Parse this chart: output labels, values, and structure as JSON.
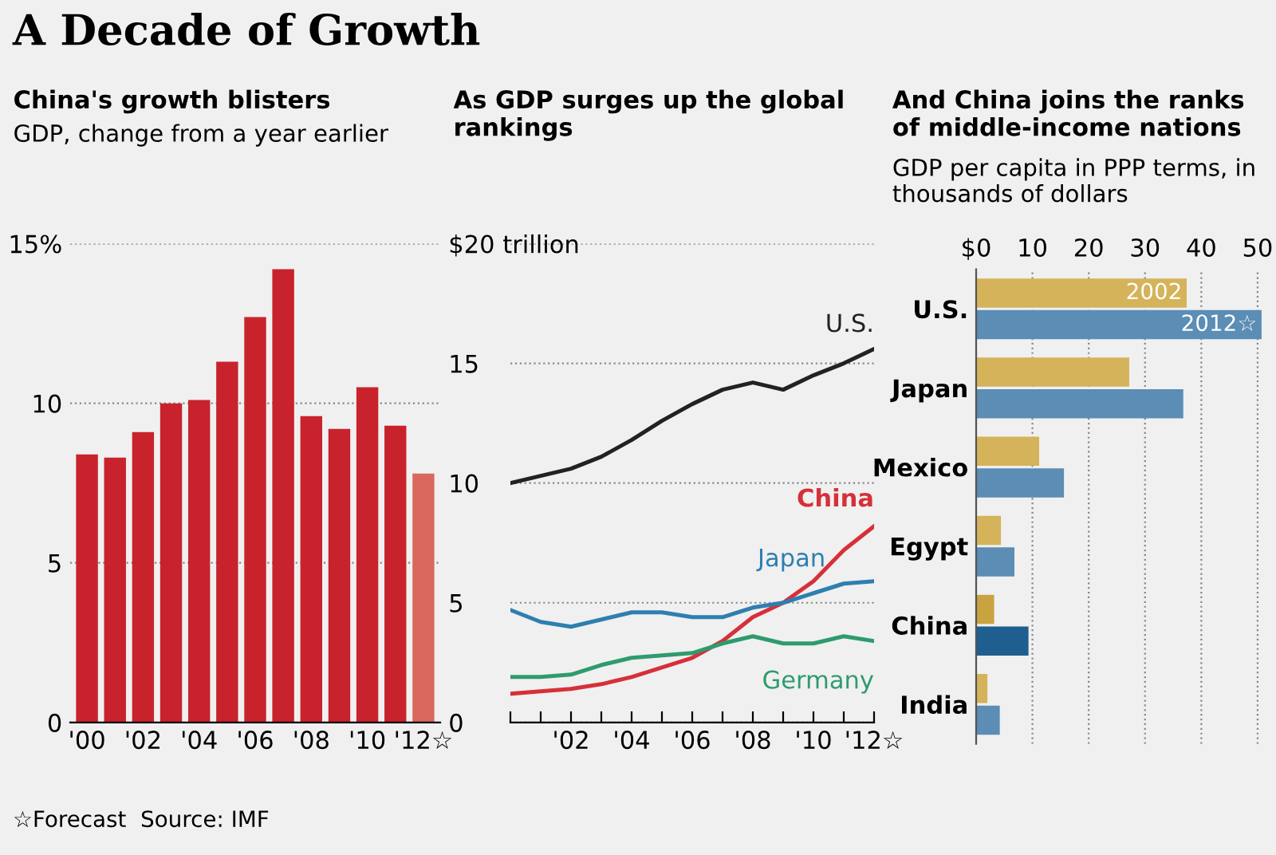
{
  "chart_data": [
    {
      "type": "bar",
      "title": "China's growth blisters",
      "subtitle": "GDP, change from a year earlier",
      "annotations": [
        "A Decade of Growth",
        "☆Forecast  Source: IMF"
      ],
      "categories": [
        "'00",
        null,
        "'02",
        null,
        "'04",
        null,
        "'06",
        null,
        "'08",
        null,
        "'10",
        null,
        "'12☆"
      ],
      "values": [
        8.4,
        8.3,
        9.1,
        10.0,
        10.1,
        11.3,
        12.7,
        14.2,
        9.6,
        9.2,
        10.5,
        9.3,
        7.8
      ],
      "colors": [
        "#c8232c",
        "#c8232c",
        "#c8232c",
        "#c8232c",
        "#c8232c",
        "#c8232c",
        "#c8232c",
        "#c8232c",
        "#c8232c",
        "#c8232c",
        "#c8232c",
        "#c8232c",
        "#d9685f"
      ],
      "ylim": [
        0,
        15
      ],
      "yticks": [
        0,
        5,
        10,
        {
          "value": 15,
          "label": "15%"
        }
      ],
      "grid": "y"
    },
    {
      "type": "line",
      "title": "As GDP surges up the global rankings",
      "categories": [
        null,
        null,
        "'02",
        null,
        "'04",
        null,
        "'06",
        null,
        "'08",
        null,
        "'10",
        null,
        "'12☆"
      ],
      "series": [
        {
          "name": "U.S.",
          "color": "#222222",
          "values": [
            10.0,
            10.3,
            10.6,
            11.1,
            11.8,
            12.6,
            13.3,
            13.9,
            14.2,
            13.9,
            14.5,
            15.0,
            15.6
          ]
        },
        {
          "name": "China",
          "color": "#d6303a",
          "values": [
            1.2,
            1.3,
            1.4,
            1.6,
            1.9,
            2.3,
            2.7,
            3.4,
            4.4,
            5.0,
            5.9,
            7.2,
            8.2
          ]
        },
        {
          "name": "Japan",
          "color": "#2d7fb0",
          "values": [
            4.7,
            4.2,
            4.0,
            4.3,
            4.6,
            4.6,
            4.4,
            4.4,
            4.8,
            5.0,
            5.4,
            5.8,
            5.9
          ]
        },
        {
          "name": "Germany",
          "color": "#2e9b6e",
          "values": [
            1.9,
            1.9,
            2.0,
            2.4,
            2.7,
            2.8,
            2.9,
            3.3,
            3.6,
            3.3,
            3.3,
            3.6,
            3.4
          ]
        }
      ],
      "ylim": [
        0,
        20
      ],
      "yticks": [
        0,
        5,
        10,
        15,
        {
          "value": 20,
          "label": "$20 trillion"
        }
      ],
      "grid": "y"
    },
    {
      "type": "bar",
      "orientation": "horizontal",
      "title": "And China joins the ranks of middle-income nations",
      "subtitle": "GDP per capita in PPP terms, in thousands of dollars",
      "categories": [
        "U.S.",
        "Japan",
        "Mexico",
        "Egypt",
        "China",
        "India"
      ],
      "series": [
        {
          "name": "2002",
          "colors": [
            "#d4b35a",
            "#d4b35a",
            "#d4b35a",
            "#d4b35a",
            "#c9a340",
            "#d4b35a"
          ],
          "values": [
            37.4,
            27.2,
            11.2,
            4.4,
            3.2,
            2.0
          ]
        },
        {
          "name": "2012☆",
          "colors": [
            "#5b8db5",
            "#5b8db5",
            "#5b8db5",
            "#5b8db5",
            "#1f5f8f",
            "#5b8db5"
          ],
          "values": [
            50.7,
            36.8,
            15.6,
            6.8,
            9.3,
            4.2
          ]
        }
      ],
      "xlim": [
        0,
        51
      ],
      "xticks": [
        {
          "value": 0,
          "label": "$0"
        },
        10,
        20,
        30,
        40,
        50
      ],
      "grid": "x"
    }
  ]
}
